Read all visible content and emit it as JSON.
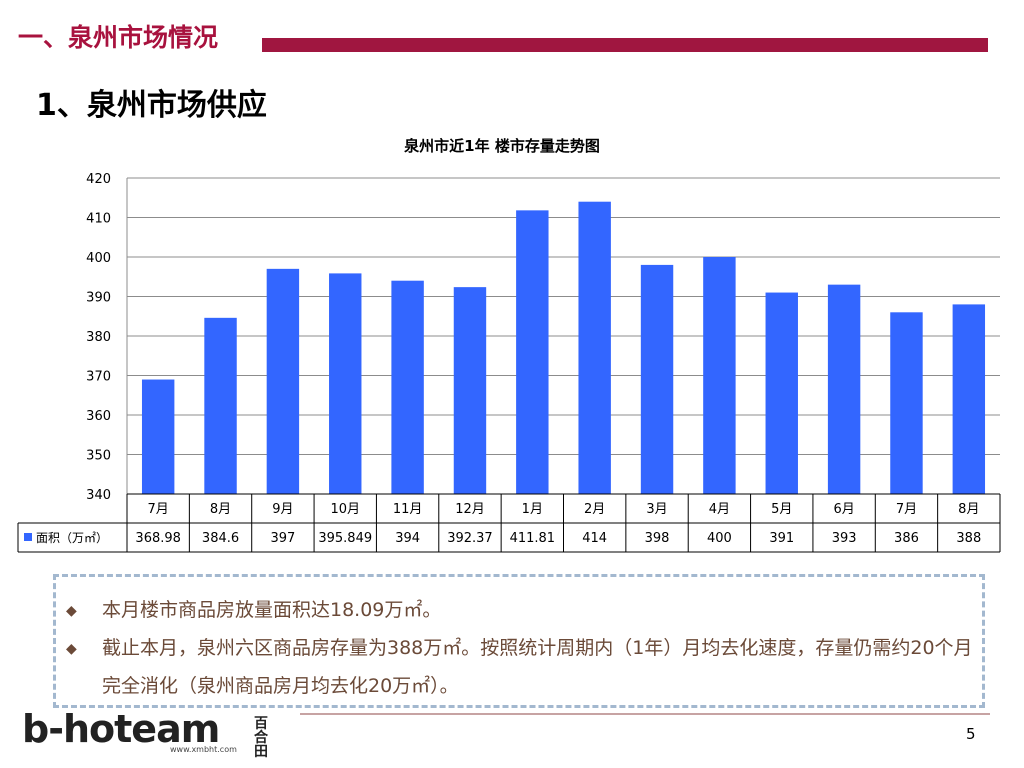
{
  "header": {
    "section_title": "一、泉州市场情况",
    "subtitle": "1、泉州市场供应"
  },
  "chart_data": {
    "type": "bar",
    "title": "泉州市近1年 楼市存量走势图",
    "categories": [
      "7月",
      "8月",
      "9月",
      "10月",
      "11月",
      "12月",
      "1月",
      "2月",
      "3月",
      "4月",
      "5月",
      "6月",
      "7月",
      "8月"
    ],
    "value_labels": [
      "368.98",
      "384.6",
      "397",
      "395.849",
      "394",
      "392.37",
      "411.81",
      "414",
      "398",
      "400",
      "391",
      "393",
      "386",
      "388"
    ],
    "series": [
      {
        "name": "面积（万㎡）",
        "values": [
          368.98,
          384.6,
          397,
          395.849,
          394,
          392.37,
          411.81,
          414,
          398,
          400,
          391,
          393,
          386,
          388
        ]
      }
    ],
    "ylim": [
      340,
      420
    ],
    "yticks": [
      340,
      350,
      360,
      370,
      380,
      390,
      400,
      410,
      420
    ],
    "grid": true,
    "legend": "data-table",
    "bar_color": "#3366ff"
  },
  "notes": {
    "bullet1": "本月楼市商品房放量面积达18.09万㎡。",
    "bullet2": "截止本月，泉州六区商品房存量为388万㎡。按照统计周期内（1年）月均去化速度，存量仍需约20个月完全消化（泉州商品房月均去化20万㎡）。"
  },
  "logo": {
    "text": "b-hoteam",
    "url": "www.xmbht.com",
    "cn": "百合田"
  },
  "page_number": "5"
}
